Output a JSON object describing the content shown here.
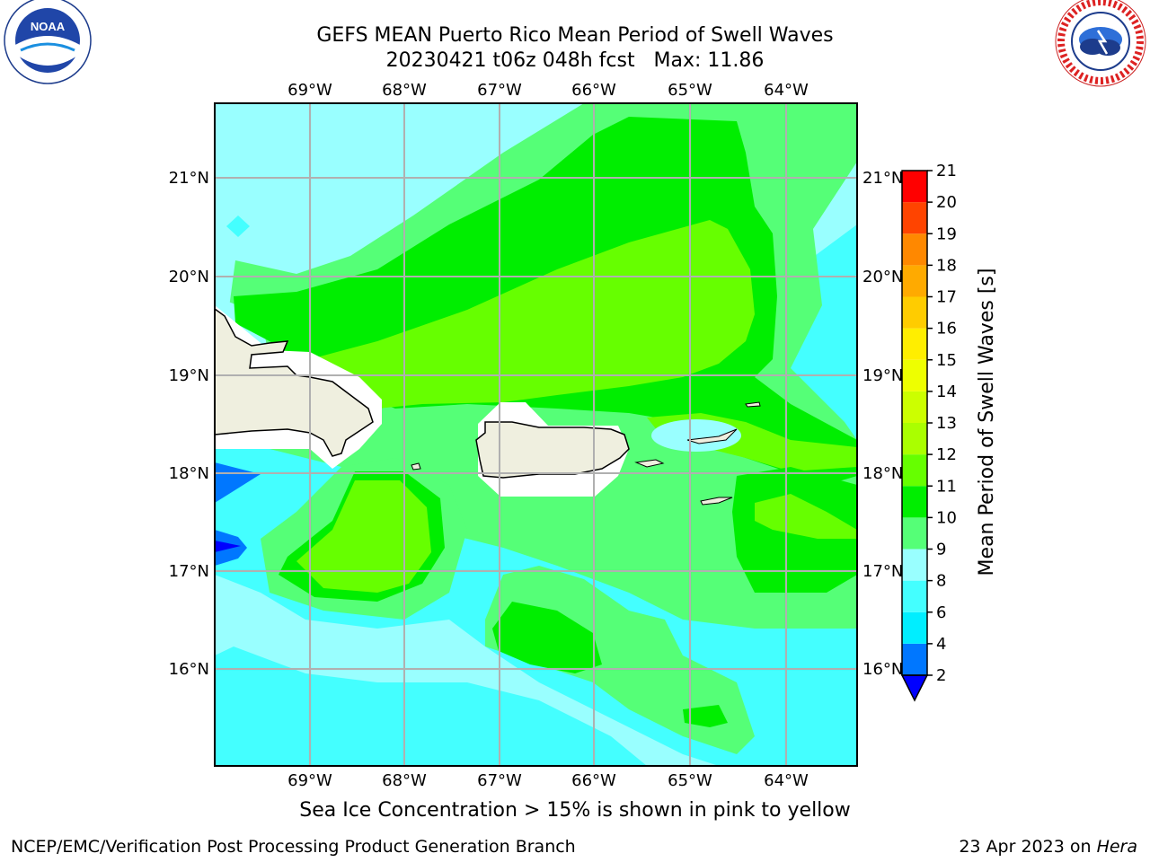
{
  "title": {
    "line1": "GEFS MEAN Puerto Rico Mean Period of Swell Waves",
    "line2": "20230421 t06z 048h fcst   Max: 11.86"
  },
  "map": {
    "lon_labels": [
      "69°W",
      "68°W",
      "67°W",
      "66°W",
      "65°W",
      "64°W"
    ],
    "lat_labels": [
      "21°N",
      "20°N",
      "19°N",
      "18°N",
      "17°N",
      "16°N"
    ],
    "colorbar": {
      "label": "Mean Period of Swell Waves [s]",
      "ticks": [
        "2",
        "4",
        "6",
        "8",
        "9",
        "10",
        "11",
        "12",
        "13",
        "14",
        "15",
        "16",
        "17",
        "18",
        "19",
        "20",
        "21"
      ],
      "colors": [
        "#0000ff",
        "#0077ff",
        "#00eeff",
        "#44ffff",
        "#99ffff",
        "#55ff77",
        "#00ee00",
        "#66ff00",
        "#aaff00",
        "#ccff00",
        "#eeff00",
        "#ffee00",
        "#ffcc00",
        "#ffaa00",
        "#ff8800",
        "#ff4400",
        "#ff0000"
      ]
    },
    "palette": {
      "cyan_light": "#99ffff",
      "cyan": "#44ffff",
      "green_light": "#55ff77",
      "green": "#00ee00",
      "lime": "#66ff00",
      "land": "#efefdf",
      "blue": "#0077ff",
      "blue_dark": "#0000ff"
    }
  },
  "caption": "Sea Ice Concentration > 15% is shown in pink to yellow",
  "footer": {
    "left": "NCEP/EMC/Verification Post Processing Product Generation Branch",
    "right_date": "23 Apr 2023 on ",
    "right_host": "Hera"
  },
  "logos": {
    "noaa_text": "NOAA",
    "nws_ring_text": "NATIONAL WEATHER SERVICE"
  }
}
